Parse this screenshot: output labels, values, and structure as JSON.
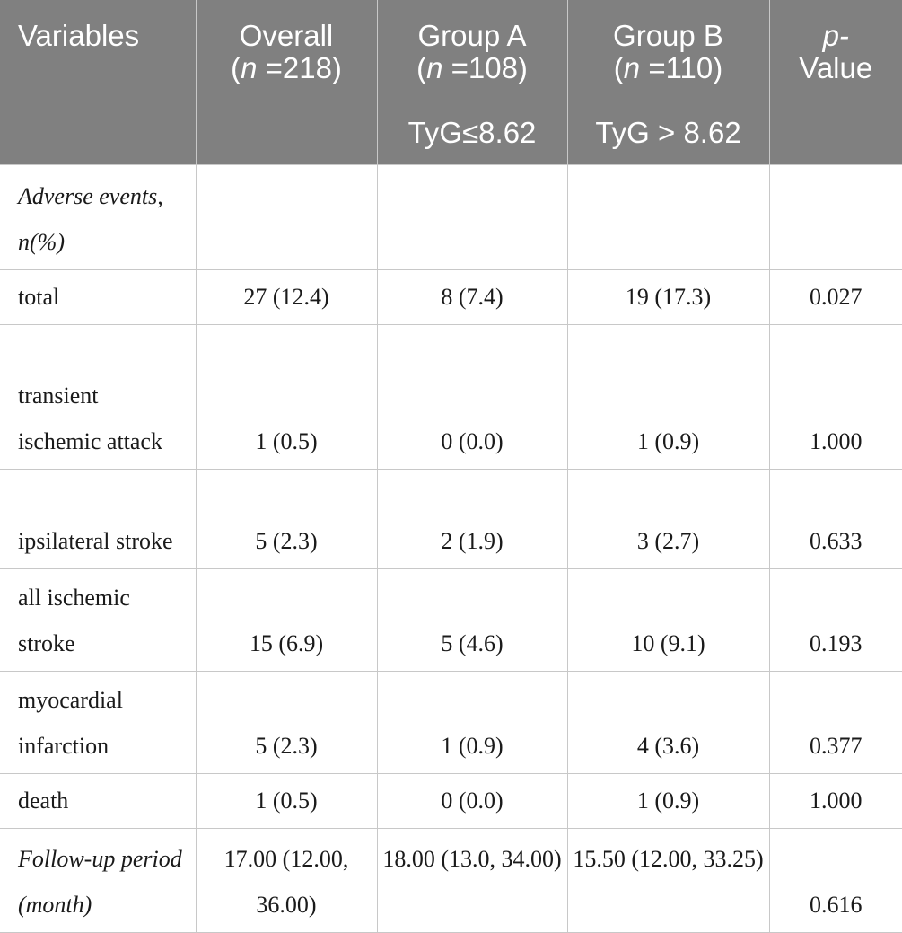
{
  "header": {
    "variables": "Variables",
    "overall": {
      "name": "Overall",
      "n_label": "n",
      "n_value": " =218)"
    },
    "group_a": {
      "name": "Group A",
      "n_label": "n",
      "n_value": " =108)",
      "criterion": "TyG≤8.62"
    },
    "group_b": {
      "name": "Group B",
      "n_label": "n",
      "n_value": " =110)",
      "criterion": "TyG > 8.62"
    },
    "p_value": {
      "line1": "p-",
      "line2": "Value"
    }
  },
  "rows": [
    {
      "label": "Adverse events, n(%)",
      "overall": "",
      "group_a": "",
      "group_b": "",
      "p": ""
    },
    {
      "label": "total",
      "overall": "27 (12.4)",
      "group_a": "8 (7.4)",
      "group_b": "19 (17.3)",
      "p": "0.027"
    },
    {
      "label": "transient ischemic attack",
      "overall": "1 (0.5)",
      "group_a": "0 (0.0)",
      "group_b": "1 (0.9)",
      "p": "1.000"
    },
    {
      "label": "ipsilateral stroke",
      "overall": "5 (2.3)",
      "group_a": "2 (1.9)",
      "group_b": "3 (2.7)",
      "p": "0.633"
    },
    {
      "label": "all ischemic stroke",
      "overall": "15 (6.9)",
      "group_a": "5 (4.6)",
      "group_b": "10 (9.1)",
      "p": "0.193"
    },
    {
      "label": "myocardial infarction",
      "overall": "5 (2.3)",
      "group_a": "1 (0.9)",
      "group_b": "4 (3.6)",
      "p": "0.377"
    },
    {
      "label": "death",
      "overall": "1 (0.5)",
      "group_a": "0 (0.0)",
      "group_b": "1 (0.9)",
      "p": "1.000"
    },
    {
      "label": "Follow-up period (month)",
      "overall": "17.00 (12.00, 36.00)",
      "group_a": "18.00 (13.0, 34.00)",
      "group_b": "15.50 (12.00, 33.25)",
      "p": "0.616"
    }
  ]
}
